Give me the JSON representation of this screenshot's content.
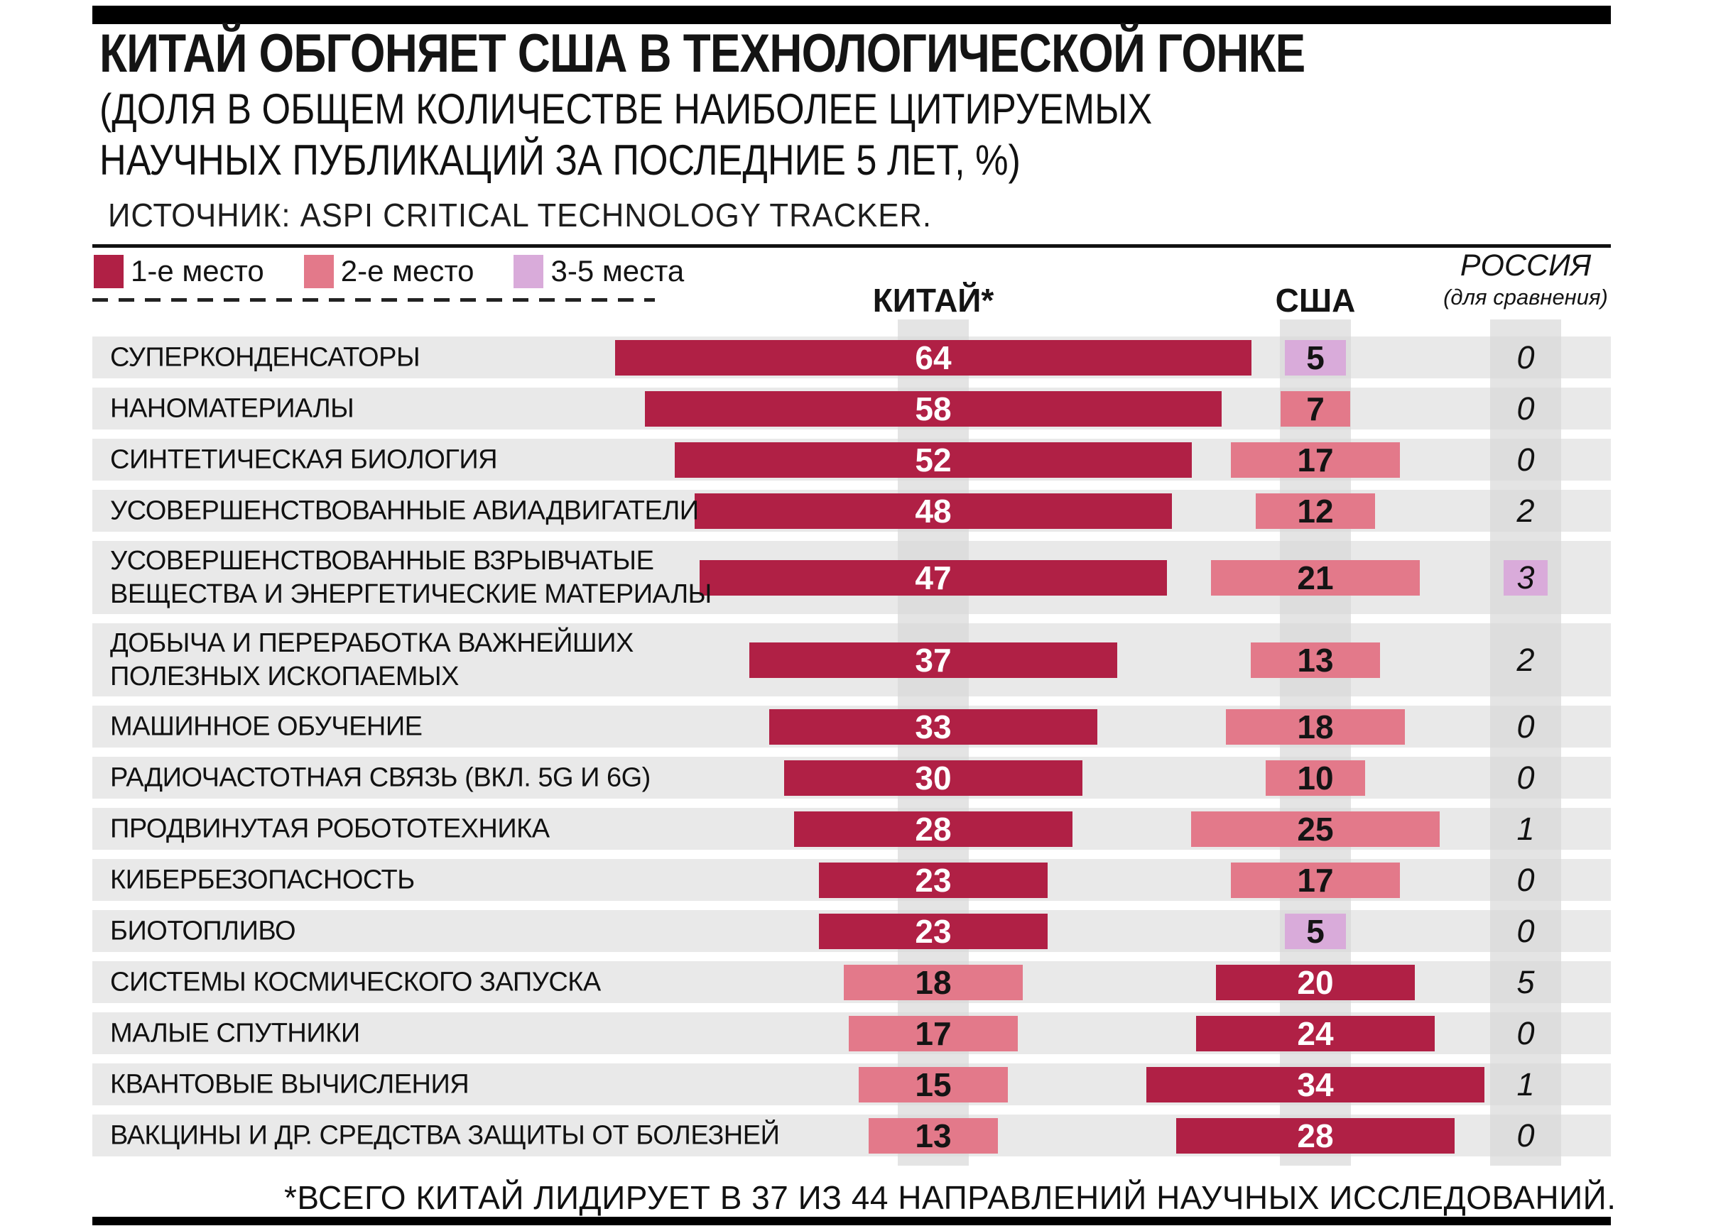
{
  "colors": {
    "rank1": "#b02045",
    "rank2": "#e3798a",
    "rank3": "#d9abda",
    "bar_text_light": "#ffffff",
    "bar_text_dark": "#141414",
    "row_band": "#e9e9e9",
    "column_strip": "#e4e4e4",
    "frame": "#000000"
  },
  "chart_data": {
    "type": "bar",
    "orientation": "horizontal, bars centered on each country column axis",
    "unit": "%",
    "title": "КИТАЙ ОБГОНЯЕТ США В ТЕХНОЛОГИЧЕСКОЙ ГОНКЕ",
    "subtitle_line1": "(ДОЛЯ В ОБЩЕМ КОЛИЧЕСТВЕ НАИБОЛЕЕ ЦИТИРУЕМЫХ",
    "subtitle_line2": "НАУЧНЫХ ПУБЛИКАЦИЙ ЗА ПОСЛЕДНИЕ 5 ЛЕТ, %)",
    "source": "ИСТОЧНИК: ASPI CRITICAL TECHNOLOGY TRACKER.",
    "footnote": "*ВСЕГО КИТАЙ ЛИДИРУЕТ В 37 ИЗ 44 НАПРАВЛЕНИЙ НАУЧНЫХ ИССЛЕДОВАНИЙ.",
    "legend": [
      {
        "label": "1-е место",
        "rank": "1"
      },
      {
        "label": "2-е место",
        "rank": "2"
      },
      {
        "label": "3-5 места",
        "rank": "3-5"
      }
    ],
    "columns": [
      {
        "key": "china",
        "label": "КИТАЙ*"
      },
      {
        "key": "usa",
        "label": "США"
      },
      {
        "key": "russia",
        "label": "РОССИЯ",
        "sublabel": "(для сравнения)"
      }
    ],
    "rows": [
      {
        "category": "СУПЕРКОНДЕНСАТОРЫ",
        "china": 64,
        "china_rank": "1",
        "usa": 5,
        "usa_rank": "3-5",
        "russia": 0,
        "russia_rank": null,
        "tall": false
      },
      {
        "category": "НАНОМАТЕРИАЛЫ",
        "china": 58,
        "china_rank": "1",
        "usa": 7,
        "usa_rank": "2",
        "russia": 0,
        "russia_rank": null,
        "tall": false
      },
      {
        "category": "СИНТЕТИЧЕСКАЯ БИОЛОГИЯ",
        "china": 52,
        "china_rank": "1",
        "usa": 17,
        "usa_rank": "2",
        "russia": 0,
        "russia_rank": null,
        "tall": false
      },
      {
        "category": "УСОВЕРШЕНСТВОВАННЫЕ АВИАДВИГАТЕЛИ",
        "china": 48,
        "china_rank": "1",
        "usa": 12,
        "usa_rank": "2",
        "russia": 2,
        "russia_rank": null,
        "tall": false
      },
      {
        "category": "УСОВЕРШЕНСТВОВАННЫЕ ВЗРЫВЧАТЫЕ\nВЕЩЕСТВА И ЭНЕРГЕТИЧЕСКИЕ МАТЕРИАЛЫ",
        "china": 47,
        "china_rank": "1",
        "usa": 21,
        "usa_rank": "2",
        "russia": 3,
        "russia_rank": "3-5",
        "tall": true
      },
      {
        "category": "ДОБЫЧА И ПЕРЕРАБОТКА ВАЖНЕЙШИХ\nПОЛЕЗНЫХ ИСКОПАЕМЫХ",
        "china": 37,
        "china_rank": "1",
        "usa": 13,
        "usa_rank": "2",
        "russia": 2,
        "russia_rank": null,
        "tall": true
      },
      {
        "category": "МАШИННОЕ ОБУЧЕНИЕ",
        "china": 33,
        "china_rank": "1",
        "usa": 18,
        "usa_rank": "2",
        "russia": 0,
        "russia_rank": null,
        "tall": false
      },
      {
        "category": "РАДИОЧАСТОТНАЯ СВЯЗЬ (ВКЛ. 5G И 6G)",
        "china": 30,
        "china_rank": "1",
        "usa": 10,
        "usa_rank": "2",
        "russia": 0,
        "russia_rank": null,
        "tall": false
      },
      {
        "category": "ПРОДВИНУТАЯ РОБОТОТЕХНИКА",
        "china": 28,
        "china_rank": "1",
        "usa": 25,
        "usa_rank": "2",
        "russia": 1,
        "russia_rank": null,
        "tall": false
      },
      {
        "category": "КИБЕРБЕЗОПАСНОСТЬ",
        "china": 23,
        "china_rank": "1",
        "usa": 17,
        "usa_rank": "2",
        "russia": 0,
        "russia_rank": null,
        "tall": false
      },
      {
        "category": "БИОТОПЛИВО",
        "china": 23,
        "china_rank": "1",
        "usa": 5,
        "usa_rank": "3-5",
        "russia": 0,
        "russia_rank": null,
        "tall": false
      },
      {
        "category": "СИСТЕМЫ КОСМИЧЕСКОГО ЗАПУСКА",
        "china": 18,
        "china_rank": "2",
        "usa": 20,
        "usa_rank": "1",
        "russia": 5,
        "russia_rank": null,
        "tall": false
      },
      {
        "category": "МАЛЫЕ СПУТНИКИ",
        "china": 17,
        "china_rank": "2",
        "usa": 24,
        "usa_rank": "1",
        "russia": 0,
        "russia_rank": null,
        "tall": false
      },
      {
        "category": "КВАНТОВЫЕ ВЫЧИСЛЕНИЯ",
        "china": 15,
        "china_rank": "2",
        "usa": 34,
        "usa_rank": "1",
        "russia": 1,
        "russia_rank": null,
        "tall": false
      },
      {
        "category": "ВАКЦИНЫ И ДР. СРЕДСТВА ЗАЩИТЫ ОТ БОЛЕЗНЕЙ",
        "china": 13,
        "china_rank": "2",
        "usa": 28,
        "usa_rank": "1",
        "russia": 0,
        "russia_rank": null,
        "tall": false
      }
    ]
  }
}
